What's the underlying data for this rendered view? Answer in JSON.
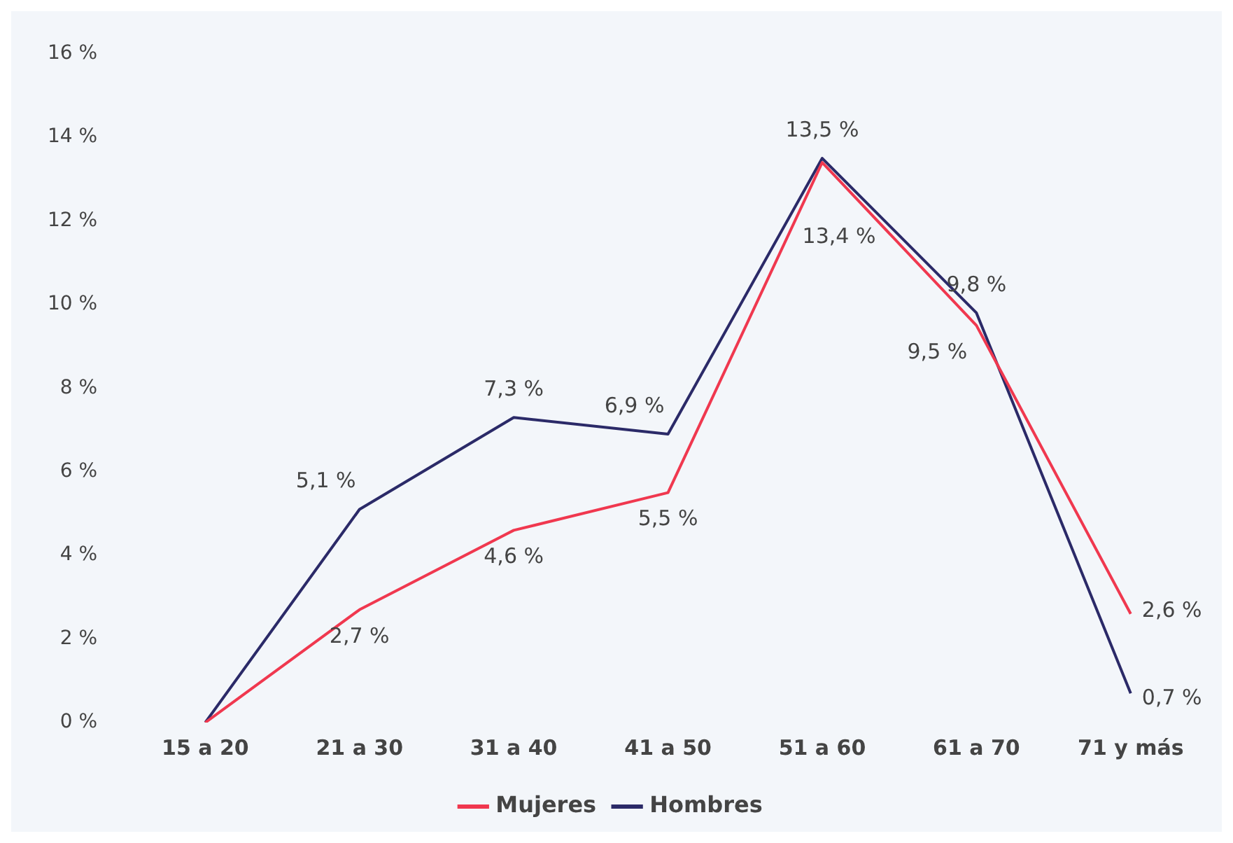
{
  "chart_data": {
    "type": "line",
    "categories": [
      "15 a 20",
      "21 a 30",
      "31 a 40",
      "41 a 50",
      "51 a 60",
      "61 a 70",
      "71 y más"
    ],
    "series": [
      {
        "name": "Mujeres",
        "color": "#f0384f",
        "values": [
          0,
          2.7,
          4.6,
          5.5,
          13.4,
          9.5,
          2.6
        ],
        "value_labels": [
          null,
          "2,7 %",
          "4,6 %",
          "5,5 %",
          "13,4 %",
          "9,5 %",
          "2,6 %"
        ]
      },
      {
        "name": "Hombres",
        "color": "#2b2a68",
        "values": [
          0,
          5.1,
          7.3,
          6.9,
          13.5,
          9.8,
          0.7
        ],
        "value_labels": [
          null,
          "5,1 %",
          "7,3 %",
          "6,9 %",
          "13,5 %",
          "9,8 %",
          "0,7 %"
        ]
      }
    ],
    "ylim": [
      0,
      16
    ],
    "yticks": [
      {
        "value": 0,
        "label": "0 %"
      },
      {
        "value": 2,
        "label": "2 %"
      },
      {
        "value": 4,
        "label": "4 %"
      },
      {
        "value": 6,
        "label": "6 %"
      },
      {
        "value": 8,
        "label": "8 %"
      },
      {
        "value": 10,
        "label": "10 %"
      },
      {
        "value": 12,
        "label": "12 %"
      },
      {
        "value": 14,
        "label": "14 %"
      },
      {
        "value": 16,
        "label": "16 %"
      }
    ],
    "grid": false,
    "legend": "bottom",
    "marker": "none",
    "line_style": "solid"
  }
}
